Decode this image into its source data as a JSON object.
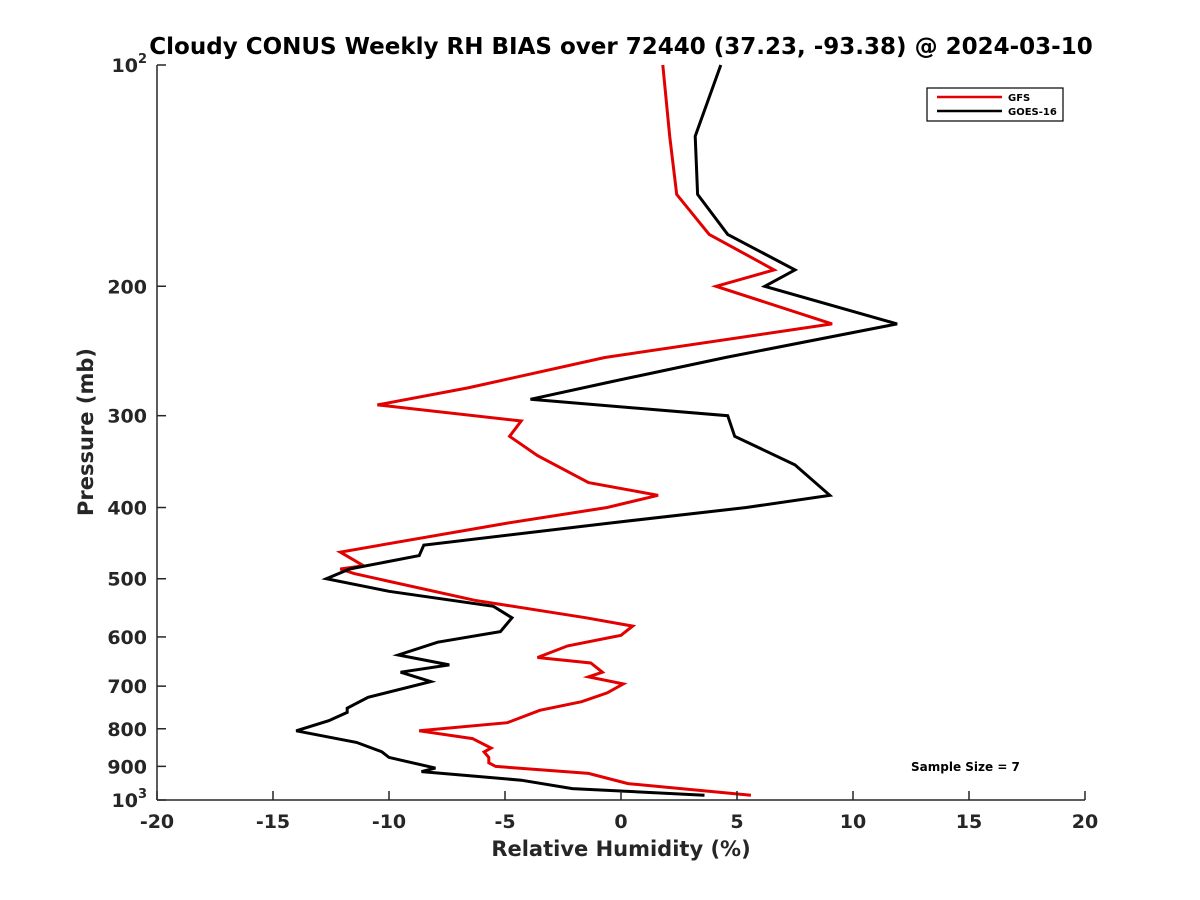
{
  "chart_data": {
    "type": "line",
    "title": "Cloudy CONUS Weekly RH BIAS over 72440 (37.23, -93.38) @ 2024-03-10",
    "xlabel": "Relative Humidity (%)",
    "ylabel": "Pressure (mb)",
    "xlim": [
      -20,
      20
    ],
    "ylim": [
      100,
      1000
    ],
    "y_scale": "log",
    "y_reversed": true,
    "grid": false,
    "legend_position": "top-right",
    "x_ticks": [
      "-20",
      "-15",
      "-10",
      "-5",
      "0",
      "5",
      "10",
      "15",
      "20"
    ],
    "y_ticks": [
      {
        "value": 100,
        "base": "10",
        "exp": "2"
      },
      {
        "value": 200,
        "label": "200"
      },
      {
        "value": 300,
        "label": "300"
      },
      {
        "value": 400,
        "label": "400"
      },
      {
        "value": 500,
        "label": "500"
      },
      {
        "value": 600,
        "label": "600"
      },
      {
        "value": 700,
        "label": "700"
      },
      {
        "value": 800,
        "label": "800"
      },
      {
        "value": 900,
        "label": "900"
      },
      {
        "value": 1000,
        "base": "10",
        "exp": "3"
      }
    ],
    "annotation": "Sample Size = 7",
    "series": [
      {
        "name": "GFS",
        "color": "#e30000",
        "points": [
          [
            1.8,
            100
          ],
          [
            2.1,
            125
          ],
          [
            2.4,
            150
          ],
          [
            3.8,
            170
          ],
          [
            6.6,
            190
          ],
          [
            4.1,
            200
          ],
          [
            9.1,
            225
          ],
          [
            -0.7,
            250
          ],
          [
            -6.6,
            275
          ],
          [
            -10.5,
            290
          ],
          [
            -4.3,
            305
          ],
          [
            -4.8,
            320
          ],
          [
            -3.6,
            340
          ],
          [
            -1.4,
            370
          ],
          [
            1.6,
            385
          ],
          [
            -0.6,
            400
          ],
          [
            -4.9,
            420
          ],
          [
            -12.1,
            460
          ],
          [
            -11.1,
            480
          ],
          [
            -12.1,
            485
          ],
          [
            -11.5,
            492
          ],
          [
            -6.3,
            535
          ],
          [
            -1.5,
            565
          ],
          [
            0.5,
            580
          ],
          [
            0.0,
            597
          ],
          [
            -2.3,
            617
          ],
          [
            -3.6,
            640
          ],
          [
            -1.3,
            651
          ],
          [
            -0.8,
            670
          ],
          [
            -1.4,
            680
          ],
          [
            0.1,
            695
          ],
          [
            -0.6,
            715
          ],
          [
            -1.7,
            735
          ],
          [
            -3.5,
            755
          ],
          [
            -4.9,
            785
          ],
          [
            -8.7,
            805
          ],
          [
            -6.4,
            825
          ],
          [
            -5.6,
            850
          ],
          [
            -5.9,
            860
          ],
          [
            -5.7,
            875
          ],
          [
            -5.7,
            890
          ],
          [
            -5.4,
            900
          ],
          [
            -1.4,
            920
          ],
          [
            0.3,
            950
          ],
          [
            5.6,
            985
          ]
        ]
      },
      {
        "name": "GOES-16",
        "color": "#000000",
        "points": [
          [
            4.3,
            100
          ],
          [
            3.2,
            125
          ],
          [
            3.3,
            150
          ],
          [
            4.6,
            170
          ],
          [
            7.5,
            190
          ],
          [
            6.2,
            200
          ],
          [
            11.9,
            225
          ],
          [
            4.5,
            250
          ],
          [
            -0.5,
            270
          ],
          [
            -3.9,
            285
          ],
          [
            4.6,
            300
          ],
          [
            4.9,
            320
          ],
          [
            7.5,
            350
          ],
          [
            9.0,
            385
          ],
          [
            5.4,
            400
          ],
          [
            -0.5,
            420
          ],
          [
            -8.5,
            450
          ],
          [
            -8.7,
            465
          ],
          [
            -11.7,
            485
          ],
          [
            -12.7,
            500
          ],
          [
            -10.0,
            520
          ],
          [
            -5.5,
            545
          ],
          [
            -4.7,
            565
          ],
          [
            -5.2,
            590
          ],
          [
            -7.9,
            610
          ],
          [
            -9.6,
            635
          ],
          [
            -7.4,
            655
          ],
          [
            -9.5,
            670
          ],
          [
            -8.2,
            690
          ],
          [
            -10.9,
            725
          ],
          [
            -11.8,
            750
          ],
          [
            -11.8,
            760
          ],
          [
            -12.6,
            780
          ],
          [
            -14.0,
            805
          ],
          [
            -11.4,
            835
          ],
          [
            -10.3,
            860
          ],
          [
            -10.0,
            875
          ],
          [
            -8.0,
            905
          ],
          [
            -8.6,
            915
          ],
          [
            -4.3,
            940
          ],
          [
            -2.1,
            965
          ],
          [
            3.6,
            985
          ]
        ]
      }
    ]
  }
}
